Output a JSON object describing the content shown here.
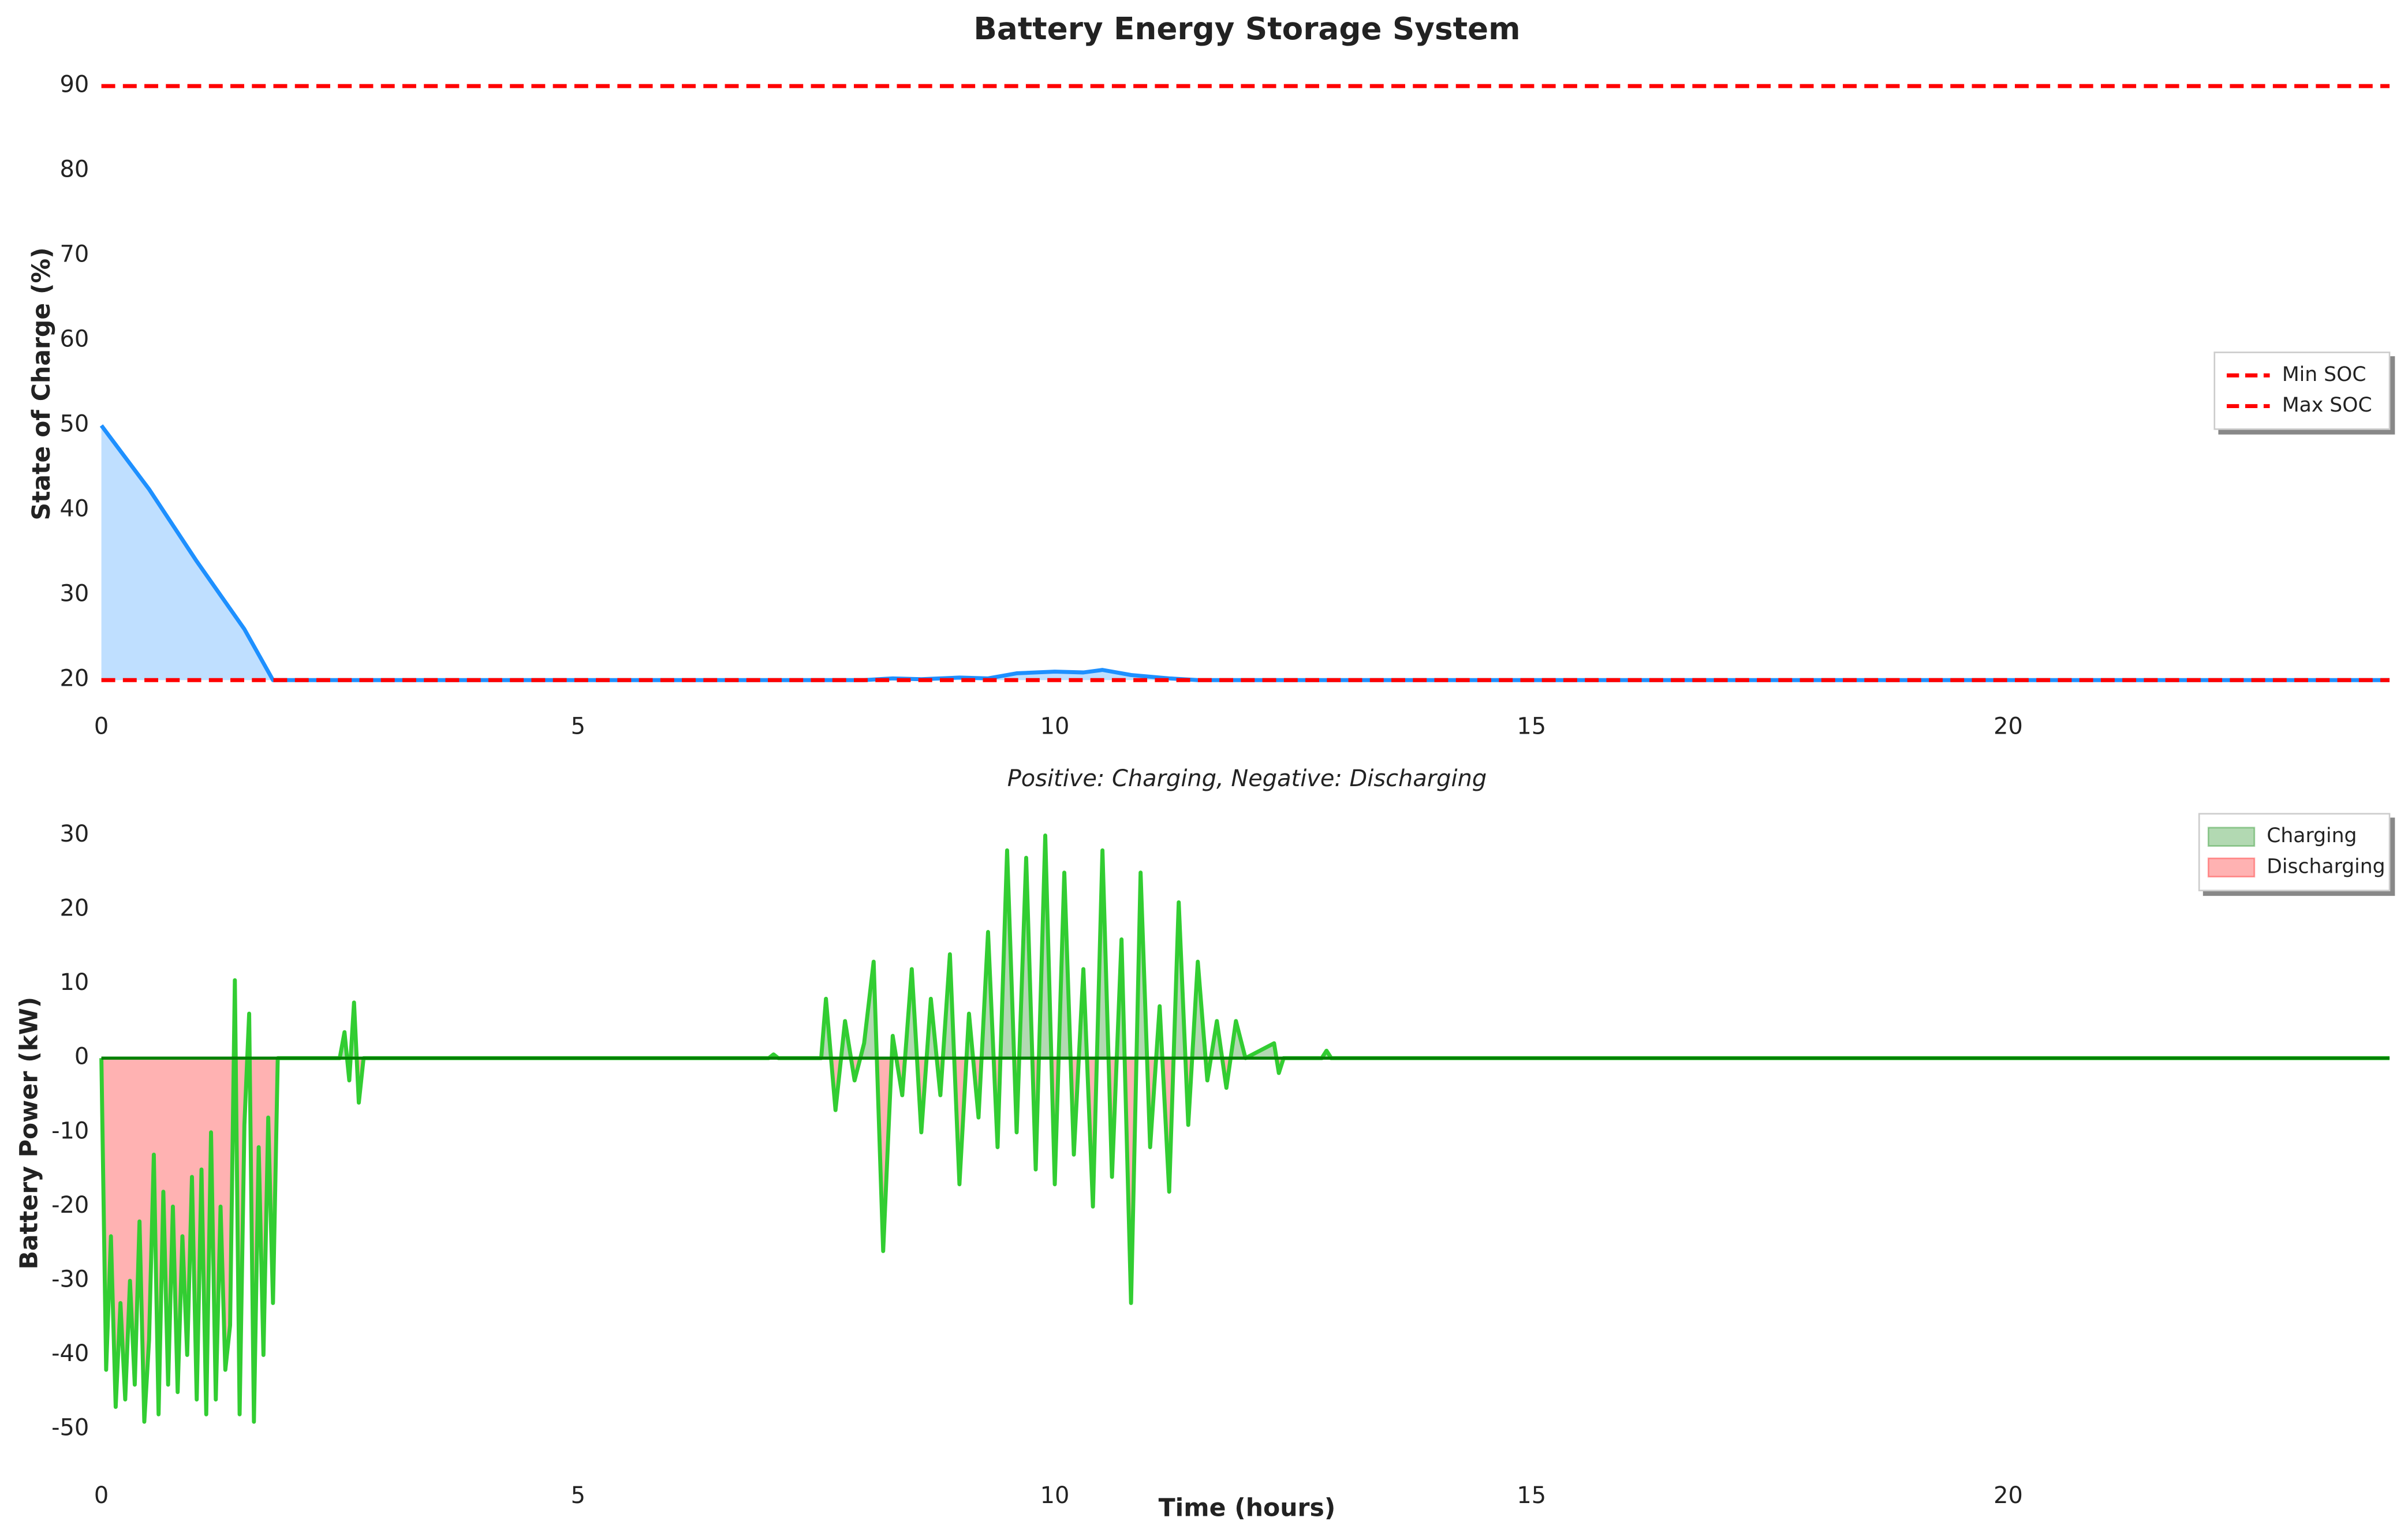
{
  "chart_data": [
    {
      "type": "line",
      "title": "Battery Energy Storage System",
      "ylabel": "State of Charge (%)",
      "x": [
        0,
        0.5,
        1.0,
        1.5,
        1.8,
        2,
        8,
        8.3,
        8.6,
        9,
        9.3,
        9.6,
        10,
        10.3,
        10.5,
        10.8,
        11.2,
        11.5,
        24
      ],
      "series": [
        {
          "color": "#1e90ff",
          "fill": "#bfdfff",
          "values": [
            50,
            42.5,
            34,
            26,
            20,
            20,
            20,
            20.2,
            20.1,
            20.3,
            20.2,
            20.8,
            21,
            20.9,
            21.2,
            20.6,
            20.2,
            20,
            20
          ]
        }
      ],
      "hlines": [
        {
          "name": "Min SOC",
          "value": 20,
          "color": "#ff0000"
        },
        {
          "name": "Max SOC",
          "value": 90,
          "color": "#ff0000"
        }
      ],
      "xlim": [
        0,
        24
      ],
      "xticks": [
        0,
        5,
        10,
        15,
        20
      ],
      "ylim": [
        18,
        92
      ],
      "yticks": [
        20,
        30,
        40,
        50,
        60,
        70,
        80,
        90
      ],
      "legend": "center right"
    },
    {
      "type": "line",
      "title": "Positive: Charging, Negative: Discharging",
      "xlabel": "Time (hours)",
      "ylabel": "Battery Power (kW)",
      "x": [
        0,
        0.05,
        0.1,
        0.15,
        0.2,
        0.25,
        0.3,
        0.35,
        0.4,
        0.45,
        0.5,
        0.55,
        0.6,
        0.65,
        0.7,
        0.75,
        0.8,
        0.85,
        0.9,
        0.95,
        1.0,
        1.05,
        1.1,
        1.15,
        1.2,
        1.25,
        1.3,
        1.35,
        1.4,
        1.45,
        1.5,
        1.55,
        1.6,
        1.65,
        1.7,
        1.75,
        1.8,
        1.85,
        2.5,
        2.55,
        2.6,
        2.65,
        2.7,
        2.75,
        7.0,
        7.05,
        7.1,
        7.55,
        7.6,
        7.7,
        7.8,
        7.9,
        8.0,
        8.1,
        8.2,
        8.3,
        8.4,
        8.5,
        8.6,
        8.7,
        8.8,
        8.9,
        9.0,
        9.1,
        9.2,
        9.3,
        9.4,
        9.5,
        9.6,
        9.7,
        9.8,
        9.9,
        10.0,
        10.1,
        10.2,
        10.3,
        10.4,
        10.5,
        10.6,
        10.7,
        10.8,
        10.9,
        11.0,
        11.1,
        11.2,
        11.3,
        11.4,
        11.5,
        11.6,
        11.7,
        11.8,
        11.9,
        12.0,
        12.3,
        12.35,
        12.4,
        12.8,
        12.85,
        12.9,
        24
      ],
      "series": [
        {
          "color": "#32cd32",
          "values": [
            0,
            -42,
            -24,
            -47,
            -33,
            -46,
            -30,
            -44,
            -22,
            -49,
            -38,
            -13,
            -48,
            -18,
            -44,
            -20,
            -45,
            -24,
            -40,
            -16,
            -46,
            -15,
            -48,
            -10,
            -46,
            -20,
            -42,
            -36,
            10.5,
            -48,
            -9,
            6,
            -49,
            -12,
            -40,
            -8,
            -33,
            0,
            0,
            3.5,
            -3,
            7.5,
            -6,
            0,
            0,
            0.5,
            0,
            0,
            8,
            -7,
            5,
            -3,
            2,
            13,
            -26,
            3,
            -5,
            12,
            -10,
            8,
            -5,
            14,
            -17,
            6,
            -8,
            17,
            -12,
            28,
            -10,
            27,
            -15,
            30,
            -17,
            25,
            -13,
            12,
            -20,
            28,
            -16,
            16,
            -33,
            25,
            -12,
            7,
            -18,
            21,
            -9,
            13,
            -3,
            5,
            -4,
            5,
            0,
            2,
            -2,
            0,
            0,
            1,
            0,
            0
          ]
        }
      ],
      "fills": [
        {
          "name": "Charging",
          "color": "#008000"
        },
        {
          "name": "Discharging",
          "color": "#ff0000"
        }
      ],
      "reference_line": 0,
      "xlim": [
        0,
        24
      ],
      "xticks": [
        0,
        5,
        10,
        15,
        20
      ],
      "ylim": [
        -55,
        35
      ],
      "yticks": [
        -50,
        -40,
        -30,
        -20,
        -10,
        0,
        10,
        20,
        30
      ],
      "legend": "upper right"
    }
  ]
}
